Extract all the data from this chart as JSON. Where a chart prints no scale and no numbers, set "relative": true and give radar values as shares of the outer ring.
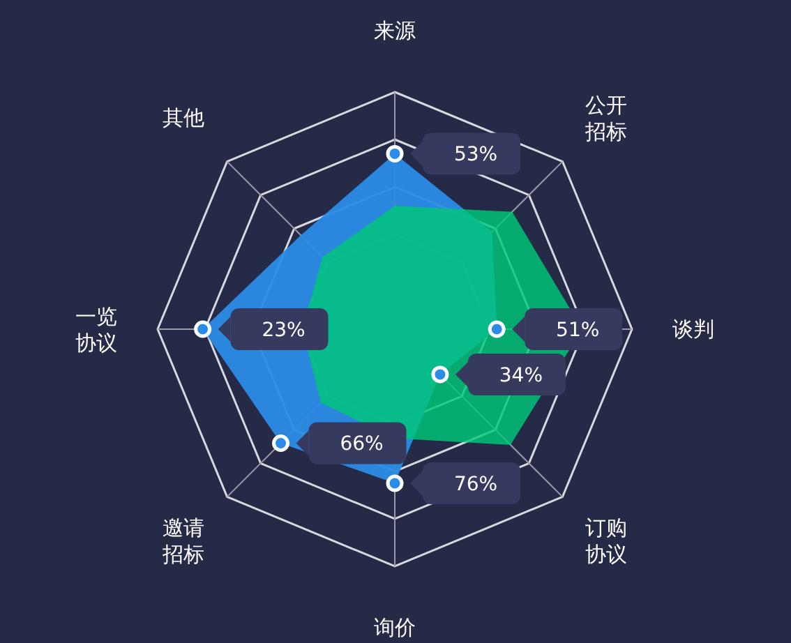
{
  "chart_data": {
    "type": "radar",
    "relative": true,
    "categories": [
      "来源",
      "公开招标",
      "谈判",
      "订购协议",
      "询价",
      "邀请招标",
      "一览协议",
      "其他"
    ],
    "series": [
      {
        "color": "#2a8ce6",
        "values": [
          0.74,
          0.58,
          0.43,
          0.27,
          0.65,
          0.68,
          0.81,
          0.56
        ]
      },
      {
        "color": "#00c878",
        "values": [
          0.52,
          0.7,
          0.79,
          0.69,
          0.46,
          0.44,
          0.39,
          0.43
        ]
      }
    ],
    "marker": "circle",
    "annotations": [
      {
        "text": "53%",
        "x": "来源"
      },
      {
        "text": "51%",
        "x": "谈判"
      },
      {
        "text": "34%",
        "x": "订购协议"
      },
      {
        "text": "76%",
        "x": "询价"
      },
      {
        "text": "66%",
        "x": "邀请招标"
      },
      {
        "text": "23%",
        "x": "一览协议"
      }
    ]
  }
}
